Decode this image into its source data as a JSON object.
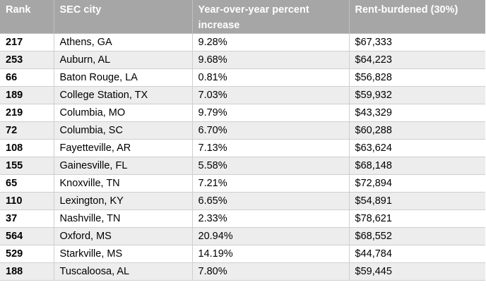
{
  "table": {
    "headers": [
      "Rank",
      "SEC city",
      "Year-over-year percent increase",
      "Rent-burdened (30%)"
    ],
    "rows": [
      [
        "217",
        "Athens, GA",
        "9.28%",
        "$67,333"
      ],
      [
        "253",
        "Auburn, AL",
        "9.68%",
        "$64,223"
      ],
      [
        "66",
        "Baton Rouge, LA",
        "0.81%",
        "$56,828"
      ],
      [
        "189",
        "College Station, TX",
        "7.03%",
        "$59,932"
      ],
      [
        "219",
        "Columbia, MO",
        "9.79%",
        "$43,329"
      ],
      [
        "72",
        "Columbia, SC",
        "6.70%",
        "$60,288"
      ],
      [
        "108",
        "Fayetteville, AR",
        "7.13%",
        "$63,624"
      ],
      [
        "155",
        "Gainesville, FL",
        "5.58%",
        "$68,148"
      ],
      [
        "65",
        "Knoxville, TN",
        "7.21%",
        "$72,894"
      ],
      [
        "110",
        "Lexington, KY",
        "6.65%",
        "$54,891"
      ],
      [
        "37",
        "Nashville, TN",
        "2.33%",
        "$78,621"
      ],
      [
        "564",
        "Oxford, MS",
        "20.94%",
        "$68,552"
      ],
      [
        "529",
        "Starkville, MS",
        "14.19%",
        "$44,784"
      ],
      [
        "188",
        "Tuscaloosa, AL",
        "7.80%",
        "$59,445"
      ]
    ]
  },
  "colors": {
    "header_bg": "#a6a6a6",
    "header_text": "#ffffff",
    "row_alt_bg": "#ededed",
    "grid_line": "#cfcfcf"
  }
}
